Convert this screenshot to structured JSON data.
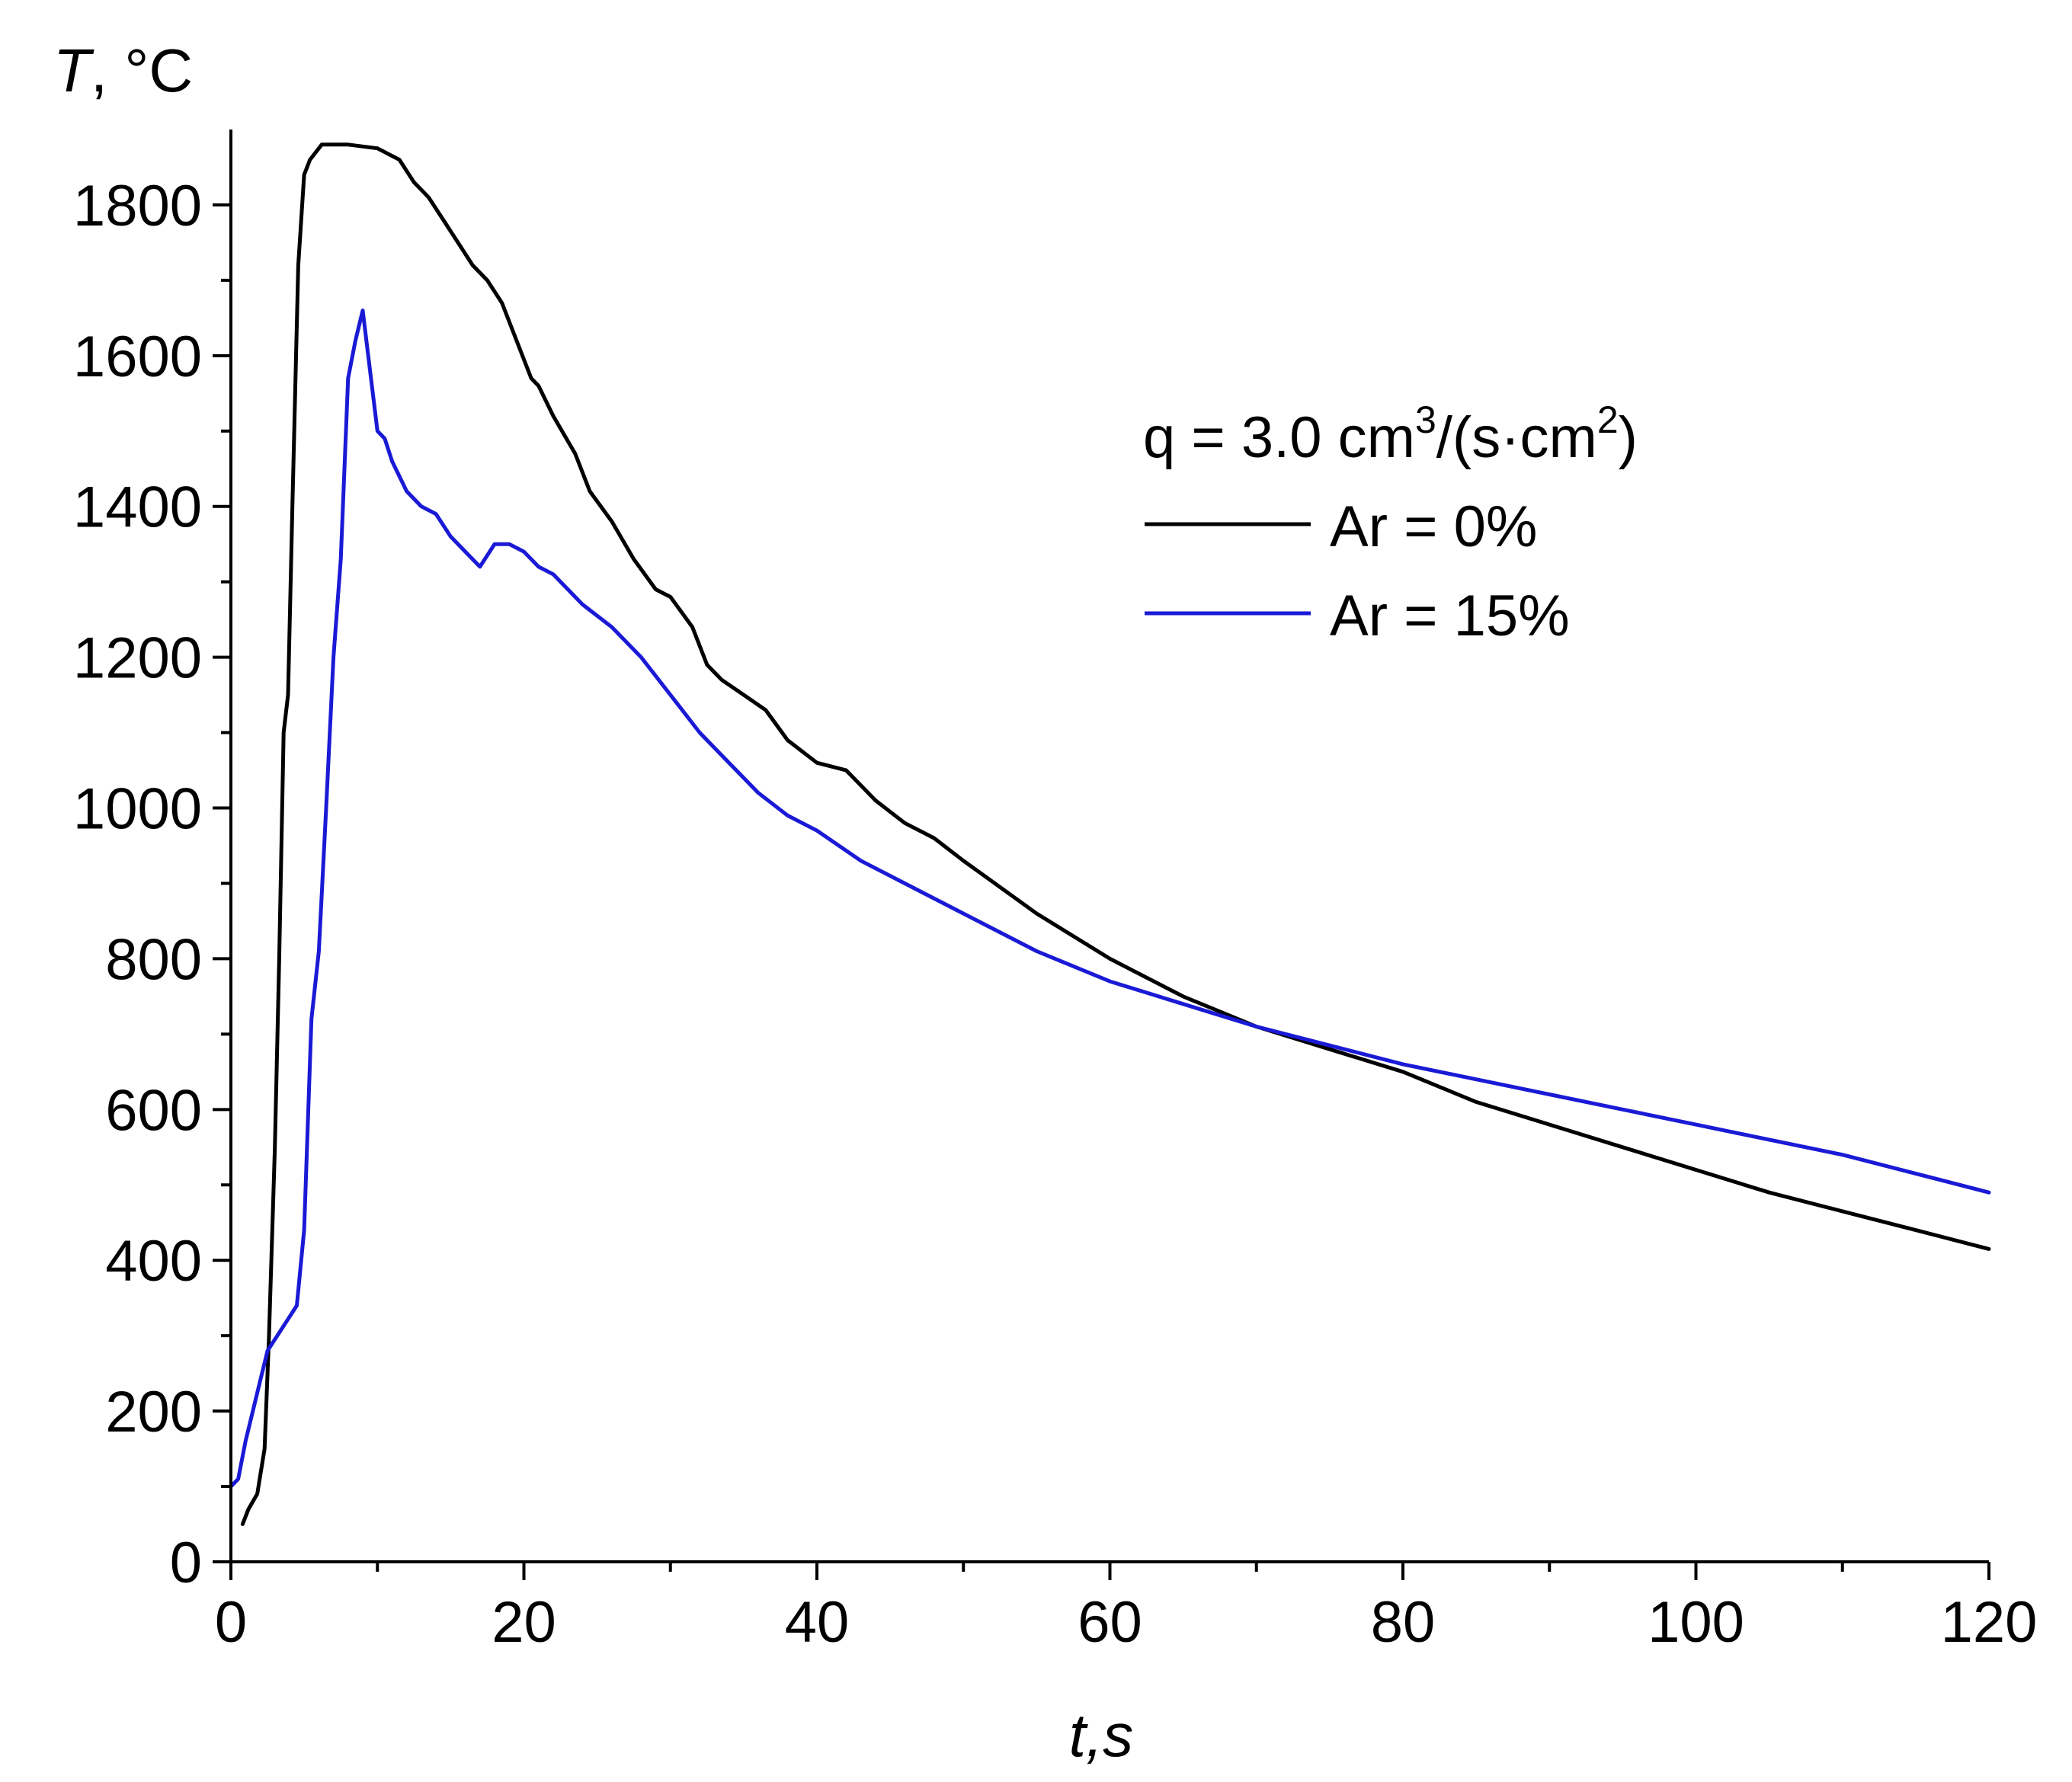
{
  "chart_data": {
    "type": "line",
    "title": "",
    "xlabel": "t,s",
    "ylabel_italic": "T",
    "ylabel_unit": ", °C",
    "xlim": [
      0,
      120
    ],
    "ylim": [
      0,
      1900
    ],
    "x_ticks": [
      0,
      20,
      40,
      60,
      80,
      100,
      120
    ],
    "y_ticks": [
      0,
      200,
      400,
      600,
      800,
      1000,
      1200,
      1400,
      1600,
      1800
    ],
    "x_tick_labels": [
      "0",
      "20",
      "40",
      "60",
      "80",
      "100",
      "120"
    ],
    "y_tick_labels": [
      "0",
      "200",
      "400",
      "600",
      "800",
      "1000",
      "1200",
      "1400",
      "1600",
      "1800"
    ],
    "legend": {
      "title_prefix": "q = 3.0 cm",
      "title_sup1": "3",
      "title_mid": "/(s·cm",
      "title_sup2": "2",
      "title_suffix": ")",
      "placement": "upper-right"
    },
    "series": [
      {
        "name": "Ar = 0%",
        "color": "#000000",
        "x": [
          0.8,
          1.2,
          1.8,
          2.3,
          2.6,
          3.0,
          3.3,
          3.6,
          3.9,
          4.2,
          4.6,
          5.0,
          5.4,
          5.8,
          6.2,
          7.0,
          8.0,
          10.0,
          11.5,
          12.5,
          13.5,
          14.5,
          15.5,
          16.5,
          17.5,
          18.5,
          19.5,
          20.5,
          21.0,
          22.0,
          23.5,
          24.5,
          26.0,
          27.5,
          29.0,
          30.0,
          31.5,
          32.5,
          33.5,
          35.0,
          36.5,
          38.0,
          40.0,
          42.0,
          44.0,
          46.0,
          48.0,
          50.0,
          55.0,
          60.0,
          65.0,
          70.0,
          75.0,
          80.0,
          85.0,
          90.0,
          95.0,
          100.0,
          105.0,
          110.0,
          115.0,
          120.0
        ],
        "values": [
          50,
          70,
          90,
          150,
          300,
          550,
          800,
          1100,
          1150,
          1400,
          1720,
          1840,
          1860,
          1870,
          1880,
          1880,
          1880,
          1875,
          1860,
          1830,
          1810,
          1780,
          1750,
          1720,
          1700,
          1670,
          1620,
          1570,
          1560,
          1520,
          1470,
          1420,
          1380,
          1330,
          1290,
          1280,
          1240,
          1190,
          1170,
          1150,
          1130,
          1090,
          1060,
          1050,
          1010,
          980,
          960,
          930,
          860,
          800,
          750,
          710,
          680,
          650,
          610,
          580,
          550,
          520,
          490,
          465,
          440,
          415
        ]
      },
      {
        "name": "Ar = 15%",
        "color": "#1a1ad6",
        "x": [
          0.0,
          0.5,
          1.0,
          2.0,
          2.5,
          3.5,
          4.5,
          5.0,
          5.5,
          6.0,
          6.5,
          7.0,
          7.5,
          8.0,
          8.5,
          9.0,
          9.5,
          10.0,
          10.5,
          11.0,
          12.0,
          13.0,
          14.0,
          15.0,
          16.0,
          17.0,
          18.0,
          19.0,
          20.0,
          21.0,
          22.0,
          24.0,
          26.0,
          28.0,
          30.0,
          32.0,
          34.0,
          36.0,
          38.0,
          40.0,
          43.0,
          46.0,
          50.0,
          55.0,
          60.0,
          65.0,
          70.0,
          75.0,
          80.0,
          85.0,
          90.0,
          95.0,
          100.0,
          105.0,
          110.0,
          115.0,
          120.0
        ],
        "values": [
          100,
          110,
          160,
          240,
          280,
          310,
          340,
          440,
          720,
          810,
          1000,
          1200,
          1330,
          1570,
          1620,
          1660,
          1580,
          1500,
          1490,
          1460,
          1420,
          1400,
          1390,
          1360,
          1340,
          1320,
          1350,
          1350,
          1340,
          1320,
          1310,
          1270,
          1240,
          1200,
          1150,
          1100,
          1060,
          1020,
          990,
          970,
          930,
          900,
          860,
          810,
          770,
          740,
          710,
          685,
          660,
          640,
          620,
          600,
          580,
          560,
          540,
          515,
          490
        ]
      }
    ]
  }
}
